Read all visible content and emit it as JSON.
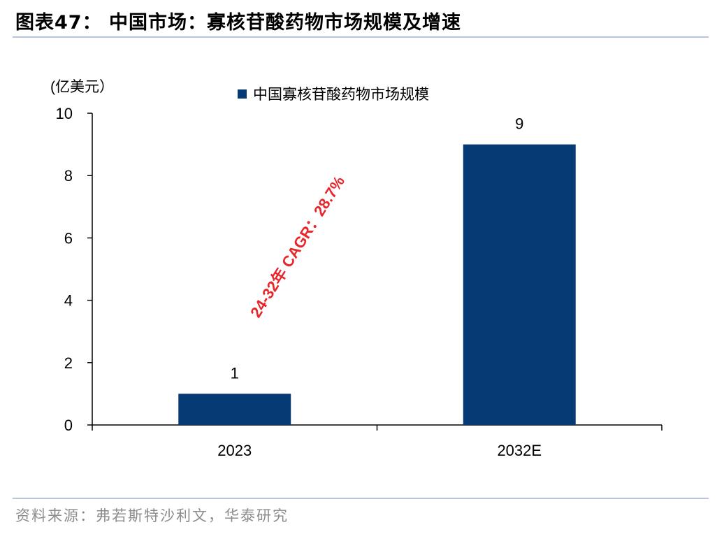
{
  "figure": {
    "title": "图表47： 中国市场：寡核苷酸药物市场规模及增速",
    "source": "资料来源：弗若斯特沙利文，华泰研究"
  },
  "colors": {
    "bar": "#063A74",
    "annotation": "#E8262A",
    "rule": "#B7C6DC",
    "source_text": "#8C8C8C"
  },
  "chart_data": {
    "type": "bar",
    "categories": [
      "2023",
      "2032E"
    ],
    "series": [
      {
        "name": "中国寡核苷酸药物市场规模",
        "values": [
          1,
          9
        ]
      }
    ],
    "data_labels": [
      "1",
      "9"
    ],
    "ylabel": "(亿美元）",
    "ylim": [
      0,
      10
    ],
    "yticks": [
      "0",
      "2",
      "4",
      "6",
      "8",
      "10"
    ],
    "grid": false,
    "legend_position": "top-center",
    "annotation": "24-32年 CAGR：28.7%"
  }
}
